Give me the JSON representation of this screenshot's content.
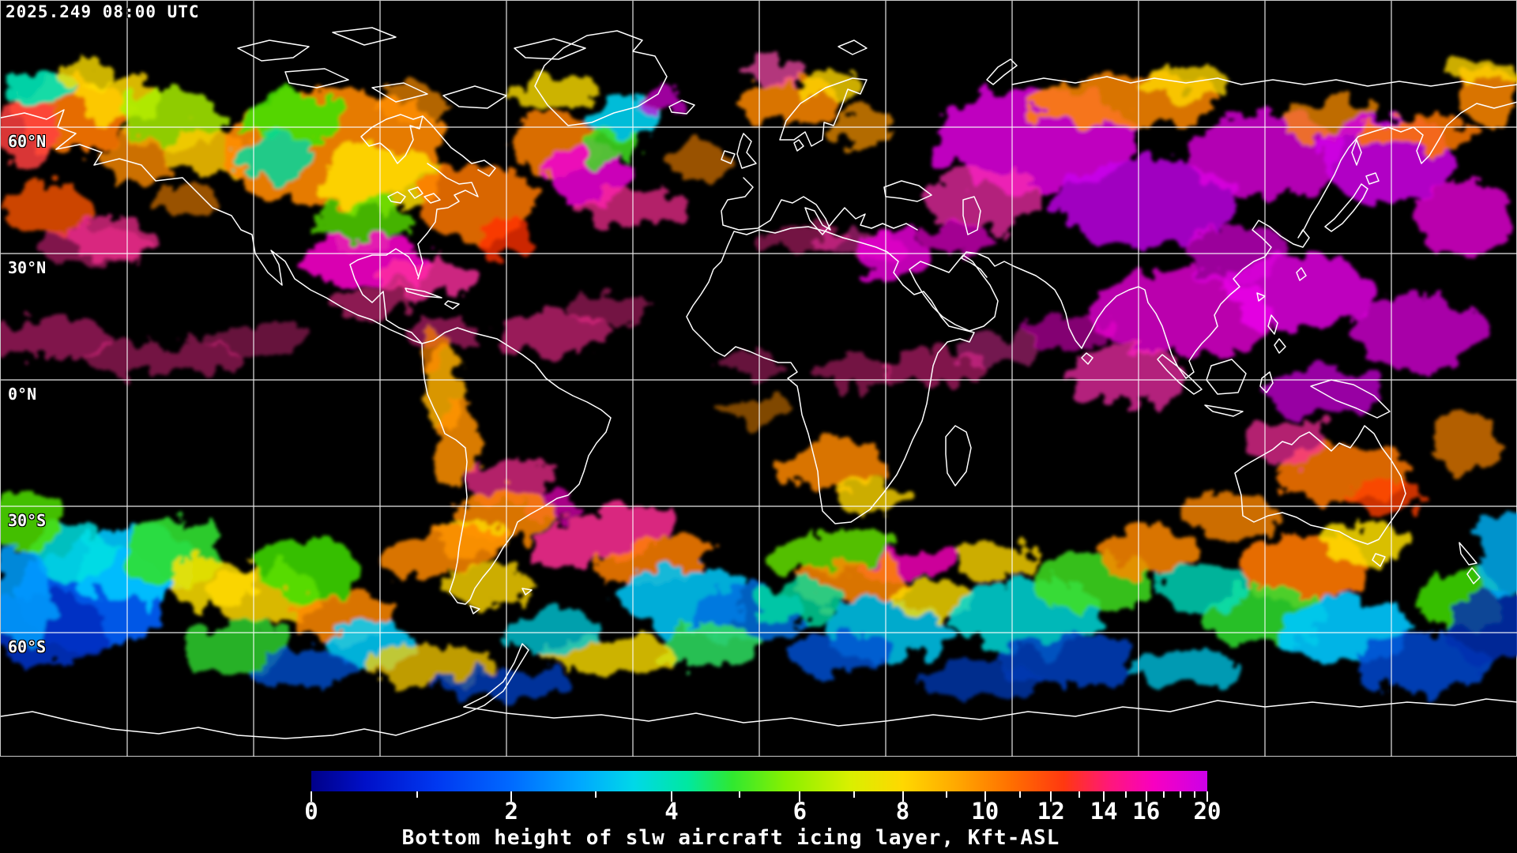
{
  "header": {
    "timestamp": "2025.249 08:00 UTC"
  },
  "map": {
    "background_color": "#000000",
    "coastline_color": "#ffffff",
    "grid_color": "#ffffff",
    "latitude_labels": [
      {
        "label": "60°N",
        "lat": 60
      },
      {
        "label": "30°N",
        "lat": 30
      },
      {
        "label": "0°N",
        "lat": 0
      },
      {
        "label": "30°S",
        "lat": -30
      },
      {
        "label": "60°S",
        "lat": -60
      }
    ],
    "longitude_grid_deg": [
      -150,
      -120,
      -90,
      -60,
      -30,
      0,
      30,
      60,
      90,
      120,
      150
    ],
    "latitude_grid_deg": [
      60,
      30,
      0,
      -30,
      -60
    ],
    "grid_step_deg": 30
  },
  "colorbar": {
    "title": "Bottom height of slw aircraft icing layer, Kft-ASL",
    "unit": "Kft-ASL",
    "min": 0,
    "max": 20,
    "labeled_ticks": [
      0,
      2,
      4,
      6,
      8,
      10,
      12,
      14,
      16,
      20
    ],
    "all_ticks": [
      0,
      1,
      2,
      3,
      4,
      5,
      6,
      7,
      8,
      9,
      10,
      11,
      12,
      13,
      14,
      15,
      16,
      17,
      18,
      19,
      20
    ],
    "scale": {
      "type": "compressed-geometric",
      "ratio": 0.895
    },
    "stops": [
      {
        "at": 0.0,
        "color": "#000088"
      },
      {
        "at": 0.06,
        "color": "#0010c8"
      },
      {
        "at": 0.14,
        "color": "#0038f0"
      },
      {
        "at": 0.22,
        "color": "#0068ff"
      },
      {
        "at": 0.3,
        "color": "#00a8ff"
      },
      {
        "at": 0.36,
        "color": "#00d8e8"
      },
      {
        "at": 0.42,
        "color": "#00e8a0"
      },
      {
        "at": 0.47,
        "color": "#30e830"
      },
      {
        "at": 0.53,
        "color": "#88f000"
      },
      {
        "at": 0.6,
        "color": "#d8f000"
      },
      {
        "at": 0.66,
        "color": "#ffd800"
      },
      {
        "at": 0.72,
        "color": "#ffa800"
      },
      {
        "at": 0.78,
        "color": "#ff7000"
      },
      {
        "at": 0.84,
        "color": "#ff3810"
      },
      {
        "at": 0.89,
        "color": "#ff1878"
      },
      {
        "at": 0.94,
        "color": "#f800c0"
      },
      {
        "at": 1.0,
        "color": "#cc00e8"
      }
    ]
  }
}
